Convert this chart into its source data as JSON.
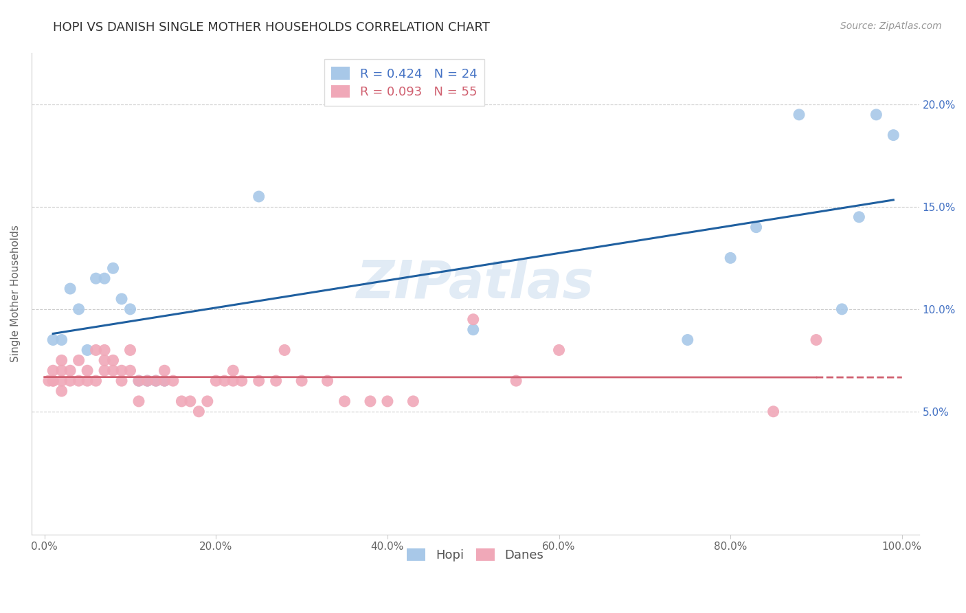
{
  "title": "HOPI VS DANISH SINGLE MOTHER HOUSEHOLDS CORRELATION CHART",
  "source": "Source: ZipAtlas.com",
  "ylabel": "Single Mother Households",
  "x_ticks": [
    0.0,
    0.2,
    0.4,
    0.6,
    0.8,
    1.0
  ],
  "x_tick_labels": [
    "0.0%",
    "20.0%",
    "40.0%",
    "60.0%",
    "80.0%",
    "100.0%"
  ],
  "y_ticks": [
    0.0,
    0.05,
    0.1,
    0.15,
    0.2
  ],
  "y_tick_labels": [
    "",
    "5.0%",
    "10.0%",
    "15.0%",
    "20.0%"
  ],
  "hopi_R": 0.424,
  "hopi_N": 24,
  "danes_R": 0.093,
  "danes_N": 55,
  "hopi_color": "#a8c8e8",
  "danes_color": "#f0a8b8",
  "hopi_line_color": "#2060a0",
  "danes_line_color": "#d06070",
  "background_color": "#ffffff",
  "watermark": "ZIPatlas",
  "hopi_x": [
    0.01,
    0.02,
    0.03,
    0.04,
    0.05,
    0.06,
    0.07,
    0.08,
    0.09,
    0.1,
    0.11,
    0.12,
    0.13,
    0.14,
    0.25,
    0.5,
    0.75,
    0.8,
    0.83,
    0.88,
    0.93,
    0.95,
    0.97,
    0.99
  ],
  "hopi_y": [
    0.085,
    0.085,
    0.11,
    0.1,
    0.08,
    0.115,
    0.115,
    0.12,
    0.105,
    0.1,
    0.065,
    0.065,
    0.065,
    0.065,
    0.155,
    0.09,
    0.085,
    0.125,
    0.14,
    0.195,
    0.1,
    0.145,
    0.195,
    0.185
  ],
  "danes_x": [
    0.005,
    0.01,
    0.01,
    0.01,
    0.02,
    0.02,
    0.02,
    0.02,
    0.03,
    0.03,
    0.04,
    0.04,
    0.05,
    0.05,
    0.06,
    0.06,
    0.07,
    0.07,
    0.07,
    0.08,
    0.08,
    0.09,
    0.09,
    0.1,
    0.1,
    0.11,
    0.11,
    0.12,
    0.13,
    0.14,
    0.14,
    0.15,
    0.16,
    0.17,
    0.18,
    0.19,
    0.2,
    0.21,
    0.22,
    0.22,
    0.23,
    0.25,
    0.27,
    0.28,
    0.3,
    0.33,
    0.35,
    0.38,
    0.4,
    0.43,
    0.5,
    0.55,
    0.6,
    0.85,
    0.9
  ],
  "danes_y": [
    0.065,
    0.065,
    0.065,
    0.07,
    0.06,
    0.065,
    0.07,
    0.075,
    0.065,
    0.07,
    0.065,
    0.075,
    0.065,
    0.07,
    0.065,
    0.08,
    0.07,
    0.075,
    0.08,
    0.07,
    0.075,
    0.065,
    0.07,
    0.07,
    0.08,
    0.065,
    0.055,
    0.065,
    0.065,
    0.065,
    0.07,
    0.065,
    0.055,
    0.055,
    0.05,
    0.055,
    0.065,
    0.065,
    0.07,
    0.065,
    0.065,
    0.065,
    0.065,
    0.08,
    0.065,
    0.065,
    0.055,
    0.055,
    0.055,
    0.055,
    0.095,
    0.065,
    0.08,
    0.05,
    0.085
  ],
  "title_fontsize": 13,
  "axis_label_fontsize": 11,
  "tick_fontsize": 11,
  "legend_fontsize": 13,
  "source_fontsize": 10,
  "hopi_legend_label": "R = 0.424   N = 24",
  "danes_legend_label": "R = 0.093   N = 55",
  "hopi_bottom_label": "Hopi",
  "danes_bottom_label": "Danes"
}
